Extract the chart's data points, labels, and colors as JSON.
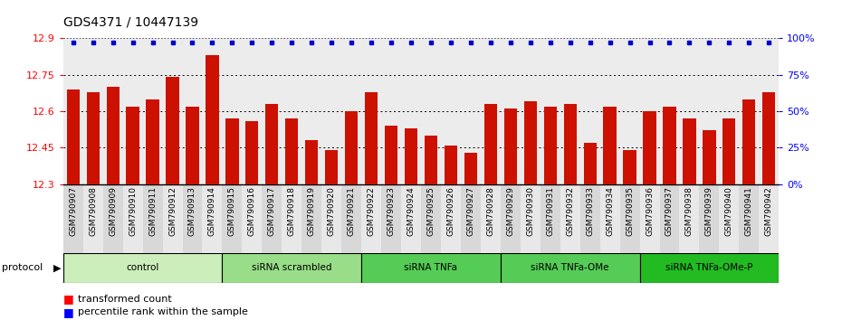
{
  "title": "GDS4371 / 10447139",
  "samples": [
    "GSM790907",
    "GSM790908",
    "GSM790909",
    "GSM790910",
    "GSM790911",
    "GSM790912",
    "GSM790913",
    "GSM790914",
    "GSM790915",
    "GSM790916",
    "GSM790917",
    "GSM790918",
    "GSM790919",
    "GSM790920",
    "GSM790921",
    "GSM790922",
    "GSM790923",
    "GSM790924",
    "GSM790925",
    "GSM790926",
    "GSM790927",
    "GSM790928",
    "GSM790929",
    "GSM790930",
    "GSM790931",
    "GSM790932",
    "GSM790933",
    "GSM790934",
    "GSM790935",
    "GSM790936",
    "GSM790937",
    "GSM790938",
    "GSM790939",
    "GSM790940",
    "GSM790941",
    "GSM790942"
  ],
  "values": [
    12.69,
    12.68,
    12.7,
    12.62,
    12.65,
    12.74,
    12.62,
    12.83,
    12.57,
    12.56,
    12.63,
    12.57,
    12.48,
    12.44,
    12.6,
    12.68,
    12.54,
    12.53,
    12.5,
    12.46,
    12.43,
    12.63,
    12.61,
    12.64,
    12.62,
    12.63,
    12.47,
    12.62,
    12.44,
    12.6,
    12.62,
    12.57,
    12.52,
    12.57,
    12.65,
    12.68
  ],
  "groups": [
    {
      "label": "control",
      "start": 0,
      "end": 8,
      "color": "#cceebb"
    },
    {
      "label": "siRNA scrambled",
      "start": 8,
      "end": 15,
      "color": "#99dd88"
    },
    {
      "label": "siRNA TNFa",
      "start": 15,
      "end": 22,
      "color": "#55cc55"
    },
    {
      "label": "siRNA TNFa-OMe",
      "start": 22,
      "end": 29,
      "color": "#55cc55"
    },
    {
      "label": "siRNA TNFa-OMe-P",
      "start": 29,
      "end": 36,
      "color": "#22bb22"
    }
  ],
  "bar_color": "#cc1100",
  "dot_color": "#0000cc",
  "ylim_left": [
    12.3,
    12.9
  ],
  "ylim_right": [
    0,
    100
  ],
  "yticks_left": [
    12.3,
    12.45,
    12.6,
    12.75,
    12.9
  ],
  "yticks_right": [
    0,
    25,
    50,
    75,
    100
  ],
  "grid_values": [
    12.45,
    12.6,
    12.75
  ],
  "bg_color": "#ececec"
}
